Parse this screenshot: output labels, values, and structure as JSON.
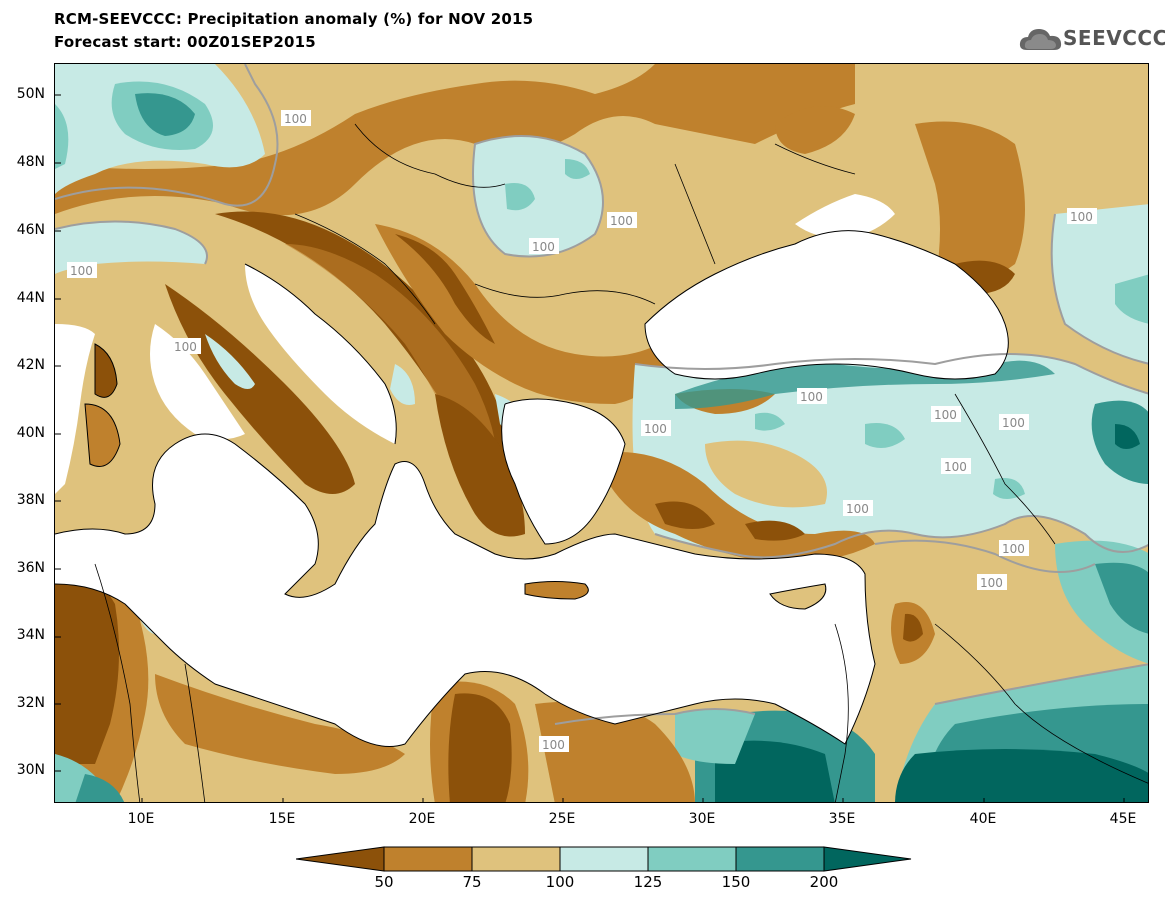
{
  "header": {
    "title": "RCM-SEEVCCC: Precipitation anomaly (%) for NOV 2015",
    "subtitle": "Forecast start: 00Z01SEP2015",
    "logo_text": "SEEVCCC",
    "logo_icon": "cloud-icon"
  },
  "map": {
    "lat_labels": [
      "50N",
      "48N",
      "46N",
      "44N",
      "42N",
      "40N",
      "38N",
      "36N",
      "34N",
      "32N",
      "30N"
    ],
    "lon_labels": [
      "10E",
      "15E",
      "20E",
      "25E",
      "30E",
      "35E",
      "40E",
      "45E"
    ],
    "contour_label": "100",
    "colors": {
      "lt50": "#8c510a",
      "50_75": "#bf812d",
      "75_100": "#dfc27d",
      "100_125": "#c7eae5",
      "125_150": "#80cdc1",
      "150_200": "#35978f",
      "gt200": "#01665e",
      "sea": "#ffffff"
    }
  },
  "colorbar": {
    "tick_labels": [
      "50",
      "75",
      "100",
      "125",
      "150",
      "200"
    ]
  }
}
